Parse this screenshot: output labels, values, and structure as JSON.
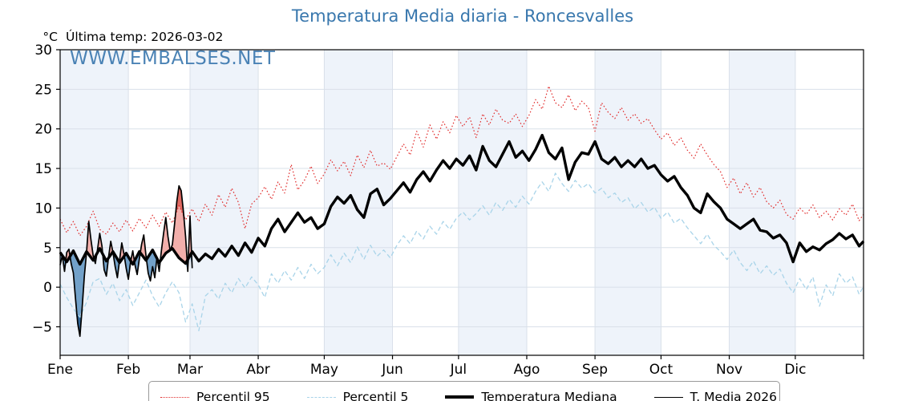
{
  "header": {
    "title": "Temperatura Media diaria - Roncesvalles",
    "units_label": "°C",
    "last_temp": "Última temp: 2026-03-02"
  },
  "watermark": "WWW.EMBALSES.NET",
  "colors": {
    "accent_blue": "#3877ad",
    "band_tint": "#eef3fa",
    "grid": "#d9e0e9",
    "spine": "#000000",
    "fill_above_light": "#f2afab",
    "fill_above_dark": "#df6a62",
    "fill_below_light": "#72a1c9",
    "fill_below_dark": "#2f6496"
  },
  "chart_data": {
    "type": "line",
    "title": "Temperatura Media diaria - Roncesvalles",
    "xlabel": "",
    "ylabel": "°C",
    "ylim": [
      -8.6,
      30
    ],
    "xlim_days": [
      0,
      365
    ],
    "grid": true,
    "legend_position": "bottom",
    "yticks": [
      30,
      25,
      20,
      15,
      10,
      5,
      0,
      -5
    ],
    "ytick_labels": [
      "30",
      "25",
      "20",
      "15",
      "10",
      "5",
      "0",
      "−5"
    ],
    "month_labels": [
      "Ene",
      "Feb",
      "Mar",
      "Abr",
      "May",
      "Jun",
      "Jul",
      "Ago",
      "Sep",
      "Oct",
      "Nov",
      "Dic"
    ],
    "month_start_days": [
      0,
      31,
      59,
      90,
      120,
      151,
      181,
      212,
      243,
      273,
      304,
      334
    ],
    "climatology_days": [
      0,
      3,
      6,
      9,
      12,
      15,
      18,
      21,
      24,
      27,
      30,
      33,
      36,
      39,
      42,
      45,
      48,
      51,
      54,
      57,
      60,
      63,
      66,
      69,
      72,
      75,
      78,
      81,
      84,
      87,
      90,
      93,
      96,
      99,
      102,
      105,
      108,
      111,
      114,
      117,
      120,
      123,
      126,
      129,
      132,
      135,
      138,
      141,
      144,
      147,
      150,
      153,
      156,
      159,
      162,
      165,
      168,
      171,
      174,
      177,
      180,
      183,
      186,
      189,
      192,
      195,
      198,
      201,
      204,
      207,
      210,
      213,
      216,
      219,
      222,
      225,
      228,
      231,
      234,
      237,
      240,
      243,
      246,
      249,
      252,
      255,
      258,
      261,
      264,
      267,
      270,
      273,
      276,
      279,
      282,
      285,
      288,
      291,
      294,
      297,
      300,
      303,
      306,
      309,
      312,
      315,
      318,
      321,
      324,
      327,
      330,
      333,
      336,
      339,
      342,
      345,
      348,
      351,
      354,
      357,
      360,
      363,
      365
    ],
    "series": [
      {
        "name": "Percentil 95",
        "style": "dotted",
        "color": "#e12e2e",
        "width": 1.2,
        "values": [
          8.6,
          6.9,
          8.3,
          6.5,
          7.7,
          9.6,
          7.3,
          6.7,
          8.1,
          7.0,
          8.5,
          7.1,
          8.7,
          7.5,
          9.1,
          7.7,
          9.5,
          8.1,
          10.3,
          8.5,
          9.9,
          8.3,
          10.5,
          9.1,
          11.7,
          10.1,
          12.5,
          10.7,
          7.4,
          10.5,
          11.3,
          12.7,
          11.1,
          13.3,
          11.9,
          15.5,
          12.3,
          13.5,
          15.3,
          13.1,
          14.3,
          16.1,
          14.7,
          15.9,
          14.1,
          16.7,
          15.1,
          17.3,
          15.3,
          15.7,
          14.9,
          16.5,
          18.1,
          16.7,
          19.7,
          17.7,
          20.5,
          18.7,
          20.9,
          19.5,
          21.7,
          20.3,
          21.5,
          18.9,
          21.9,
          20.5,
          22.5,
          21.1,
          20.7,
          21.9,
          20.3,
          21.7,
          23.7,
          22.5,
          25.4,
          23.3,
          22.7,
          24.3,
          22.3,
          23.5,
          22.7,
          19.7,
          23.3,
          22.1,
          21.3,
          22.7,
          21.1,
          21.9,
          20.7,
          21.3,
          19.9,
          18.7,
          19.5,
          17.9,
          18.9,
          17.3,
          16.3,
          18.1,
          16.7,
          15.5,
          14.6,
          12.6,
          13.8,
          11.8,
          13.2,
          11.4,
          12.6,
          10.8,
          10.0,
          11.0,
          9.2,
          8.6,
          10.0,
          9.2,
          10.4,
          8.8,
          9.6,
          8.5,
          9.9,
          9.1,
          10.5,
          8.4,
          9.2
        ]
      },
      {
        "name": "Percentil 5",
        "style": "dashed",
        "color": "#a9d4e9",
        "width": 1.3,
        "values": [
          0.4,
          -1.3,
          -2.7,
          -3.8,
          -1.9,
          0.7,
          1.1,
          -0.9,
          0.5,
          -1.7,
          -0.3,
          -2.3,
          -0.7,
          0.9,
          -1.1,
          -2.5,
          -0.7,
          0.7,
          -0.7,
          -4.4,
          -2.1,
          -5.5,
          -1.1,
          -0.3,
          -1.5,
          0.5,
          -0.7,
          1.1,
          -0.1,
          1.3,
          0.3,
          -1.3,
          1.7,
          0.5,
          2.1,
          0.9,
          2.5,
          1.1,
          2.9,
          1.7,
          2.5,
          4.1,
          2.7,
          4.3,
          3.1,
          5.1,
          3.5,
          5.3,
          3.9,
          4.7,
          3.7,
          5.3,
          6.5,
          5.5,
          7.1,
          6.1,
          7.7,
          6.7,
          8.3,
          7.3,
          8.7,
          9.5,
          8.5,
          9.3,
          10.3,
          9.1,
          10.7,
          9.7,
          11.1,
          10.1,
          11.5,
          10.5,
          12.1,
          13.3,
          12.1,
          14.4,
          13.1,
          12.1,
          13.5,
          12.5,
          13.1,
          11.9,
          12.5,
          11.3,
          11.9,
          10.7,
          11.3,
          9.9,
          10.7,
          9.5,
          10.1,
          8.7,
          9.5,
          8.1,
          8.7,
          7.5,
          6.5,
          5.5,
          6.7,
          5.3,
          4.5,
          3.5,
          4.7,
          3.1,
          2.1,
          3.3,
          1.7,
          2.7,
          1.5,
          2.3,
          0.5,
          -0.7,
          1.1,
          -0.3,
          1.3,
          -2.4,
          0.3,
          -1.1,
          1.7,
          0.5,
          1.3,
          -0.9,
          0.1
        ]
      },
      {
        "name": "Temperatura Mediana",
        "style": "solid",
        "color": "#000000",
        "width": 3.4,
        "values": [
          4.4,
          3.2,
          4.6,
          2.9,
          4.5,
          3.4,
          4.9,
          3.3,
          4.5,
          3.1,
          4.3,
          2.9,
          4.5,
          3.4,
          4.7,
          3.1,
          4.3,
          4.9,
          3.7,
          3.0,
          4.5,
          3.3,
          4.2,
          3.6,
          4.8,
          3.9,
          5.2,
          4.0,
          5.6,
          4.4,
          6.2,
          5.2,
          7.4,
          8.6,
          7.0,
          8.2,
          9.4,
          8.2,
          8.8,
          7.4,
          8.0,
          10.2,
          11.4,
          10.6,
          11.6,
          9.8,
          8.8,
          11.8,
          12.4,
          10.4,
          11.2,
          12.2,
          13.2,
          12.0,
          13.6,
          14.6,
          13.4,
          14.8,
          16.0,
          15.0,
          16.2,
          15.4,
          16.6,
          14.8,
          17.8,
          16.0,
          15.2,
          16.8,
          18.4,
          16.4,
          17.2,
          16.0,
          17.4,
          19.2,
          17.0,
          16.2,
          17.6,
          13.6,
          15.8,
          17.0,
          16.8,
          18.4,
          16.2,
          15.6,
          16.4,
          15.2,
          16.0,
          15.2,
          16.2,
          15.0,
          15.4,
          14.2,
          13.4,
          14.0,
          12.6,
          11.6,
          10.0,
          9.4,
          11.8,
          10.8,
          10.0,
          8.6,
          8.0,
          7.4,
          8.0,
          8.6,
          7.2,
          7.0,
          6.2,
          6.6,
          5.6,
          3.2,
          5.6,
          4.5,
          5.1,
          4.7,
          5.5,
          6.0,
          6.8,
          6.1,
          6.6,
          5.2,
          5.8
        ]
      },
      {
        "name": "T. Media 2026",
        "style": "solid",
        "color": "#000000",
        "width": 1.7,
        "days": [
          0,
          1,
          2,
          3,
          4,
          5,
          6,
          7,
          8,
          9,
          10,
          11,
          12,
          13,
          14,
          15,
          16,
          17,
          18,
          19,
          20,
          21,
          22,
          23,
          24,
          25,
          26,
          27,
          28,
          29,
          30,
          31,
          32,
          33,
          34,
          35,
          36,
          37,
          38,
          39,
          40,
          41,
          42,
          43,
          44,
          45,
          46,
          47,
          48,
          49,
          50,
          51,
          52,
          53,
          54,
          55,
          56,
          57,
          58,
          59,
          60
        ],
        "values": [
          2.8,
          4.0,
          2.0,
          4.4,
          4.8,
          3.0,
          1.8,
          -1.5,
          -4.6,
          -6.2,
          -2.6,
          1.4,
          4.4,
          8.3,
          6.0,
          4.0,
          3.0,
          4.8,
          6.8,
          5.2,
          2.2,
          1.4,
          3.8,
          5.8,
          4.4,
          2.6,
          1.2,
          3.4,
          5.6,
          4.2,
          2.4,
          1.0,
          3.2,
          4.6,
          2.8,
          1.6,
          3.6,
          5.4,
          6.6,
          4.0,
          1.8,
          0.8,
          2.6,
          1.2,
          3.8,
          2.0,
          4.6,
          6.8,
          8.8,
          6.4,
          4.6,
          5.4,
          8.0,
          10.8,
          12.8,
          12.2,
          9.6,
          6.4,
          2.0,
          9.0,
          2.4
        ]
      }
    ]
  },
  "legend": {
    "items": [
      {
        "label": "Percentil 95"
      },
      {
        "label": "Percentil 5"
      },
      {
        "label": "Temperatura Mediana"
      },
      {
        "label": "T. Media 2026"
      }
    ]
  }
}
